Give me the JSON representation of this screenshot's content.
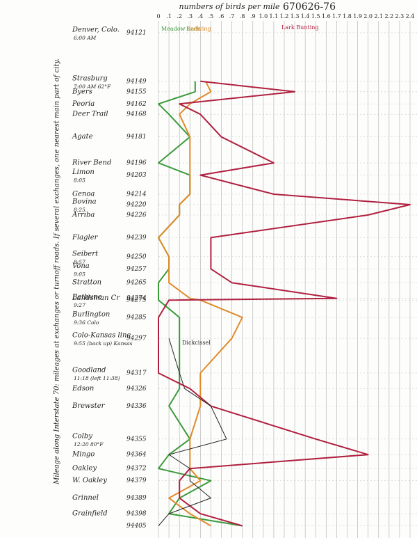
{
  "chart_data": {
    "type": "line",
    "title": "670626-76",
    "x_label": "numbers of birds per mile",
    "y_label": "Mileage along Interstate 70: mileages at exchanges or turnoff roads. If several exchanges, one nearest main part of city.",
    "categories": [
      "Denver, Colo.",
      "Strasburg",
      "Byers",
      "Peoria",
      "Deer Trail",
      "Agate",
      "River Bend",
      "Limon",
      "Genoa",
      "Bovina",
      "Arriba",
      "Flagler",
      "Seibert",
      "Vona",
      "Stratton",
      "Landsman Cr",
      "Bethune",
      "Burlington",
      "Colo-Kansas line",
      "Goodland",
      "Edson",
      "Brewster",
      "Colby",
      "Mingo",
      "Oakley",
      "W. Oakley",
      "Grinnel",
      "Grainfield",
      null
    ],
    "notes": [
      "6:00 AM",
      "7:00 AM 62°F",
      null,
      null,
      null,
      null,
      null,
      "8:05",
      null,
      "8:25",
      null,
      null,
      "8:57",
      "9:05",
      null,
      null,
      "9:27",
      "9:36 Colo",
      "9:55 (back up) Kansas",
      "11:18 (left 11:38)",
      null,
      null,
      "12:20 80°F",
      null,
      null,
      null,
      null,
      null,
      null
    ],
    "y": [
      94121,
      94149,
      94155,
      94162,
      94168,
      94181,
      94196,
      94203,
      94214,
      94220,
      94226,
      94239,
      94250,
      94257,
      94265,
      94274,
      94275,
      94285,
      94297,
      94317,
      94326,
      94336,
      94355,
      94364,
      94372,
      94379,
      94389,
      94398,
      94405
    ],
    "ylim": [
      94115,
      94410
    ],
    "xlim": [
      0,
      2.4
    ],
    "xticks": [
      0,
      {
        "value": 0.1,
        "label": ".1"
      },
      {
        "value": 0.2,
        "label": ".2"
      },
      {
        "value": 0.3,
        "label": ".3"
      },
      {
        "value": 0.4,
        "label": ".4"
      },
      {
        "value": 0.5,
        "label": ".5"
      },
      {
        "value": 0.6,
        "label": ".6"
      },
      {
        "value": 0.7,
        "label": ".7"
      },
      {
        "value": 0.8,
        "label": ".8"
      },
      {
        "value": 0.9,
        "label": ".9"
      },
      {
        "value": 1,
        "label": "1.0"
      },
      {
        "value": 1.1,
        "label": "1.1"
      },
      {
        "value": 1.2,
        "label": "1.2"
      },
      {
        "value": 1.3,
        "label": "1.3"
      },
      {
        "value": 1.4,
        "label": "1.4"
      },
      {
        "value": 1.5,
        "label": "1.5"
      },
      {
        "value": 1.6,
        "label": "1.6"
      },
      {
        "value": 1.7,
        "label": "1.7"
      },
      {
        "value": 1.8,
        "label": "1.8"
      },
      {
        "value": 1.9,
        "label": "1.9"
      },
      {
        "value": 2,
        "label": "2.0"
      },
      {
        "value": 2.1,
        "label": "2.1"
      },
      {
        "value": 2.2,
        "label": "2.2"
      },
      {
        "value": 2.3,
        "label": "2.3"
      },
      {
        "value": 2.4,
        "label": "2.4"
      }
    ],
    "grid": true,
    "series": [
      {
        "name": "Meadow Lark",
        "color": "#3a9a3a",
        "values": [
          null,
          0.35,
          0.35,
          0.0,
          0.1,
          0.3,
          0.0,
          0.3,
          0.3,
          0.2,
          0.2,
          0.0,
          0.1,
          0.1,
          0.0,
          0.0,
          0.0,
          0.2,
          0.2,
          0.2,
          0.2,
          0.1,
          0.3,
          0.1,
          0.0,
          0.5,
          0.2,
          0.1,
          0.8
        ]
      },
      {
        "name": "Redwing",
        "color": "#e08a2a",
        "values": [
          null,
          0.45,
          0.5,
          0.3,
          0.2,
          0.3,
          0.3,
          0.3,
          0.3,
          0.2,
          0.2,
          0.0,
          0.1,
          0.1,
          0.1,
          0.3,
          0.4,
          0.8,
          0.7,
          0.4,
          0.4,
          0.4,
          0.3,
          0.3,
          0.3,
          0.4,
          0.1,
          0.3,
          0.5
        ]
      },
      {
        "name": "Lark Bunting",
        "color": "#b02040",
        "values": [
          null,
          0.4,
          1.3,
          0.2,
          0.4,
          0.6,
          1.1,
          0.4,
          1.1,
          2.4,
          2.0,
          0.5,
          0.5,
          0.5,
          0.7,
          1.7,
          0.1,
          0.0,
          0.0,
          0.0,
          0.3,
          0.5,
          1.5,
          2.0,
          0.3,
          0.2,
          0.2,
          0.4,
          0.8
        ]
      },
      {
        "name": "Dickcissel",
        "color": "#222222",
        "values": [
          null,
          null,
          null,
          null,
          null,
          null,
          null,
          null,
          null,
          null,
          null,
          null,
          null,
          null,
          null,
          null,
          null,
          null,
          0.1,
          0.2,
          0.25,
          0.5,
          0.65,
          0.1,
          0.3,
          0.3,
          0.5,
          0.1,
          0.0
        ]
      }
    ]
  }
}
